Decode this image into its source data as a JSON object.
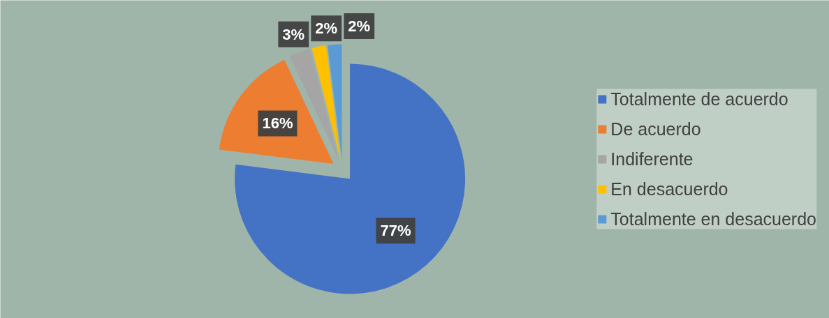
{
  "chart_data": {
    "type": "pie",
    "categories": [
      "Totalmente de acuerdo",
      "De acuerdo",
      "Indiferente",
      "En desacuerdo",
      "Totalmente en desacuerdo"
    ],
    "values": [
      77,
      16,
      3,
      2,
      2
    ],
    "colors": [
      "#4472c4",
      "#ed7d31",
      "#a5a5a5",
      "#ffc000",
      "#5b9bd5"
    ],
    "value_labels": [
      "77%",
      "16%",
      "3%",
      "2%",
      "2%"
    ],
    "legend": "right"
  }
}
